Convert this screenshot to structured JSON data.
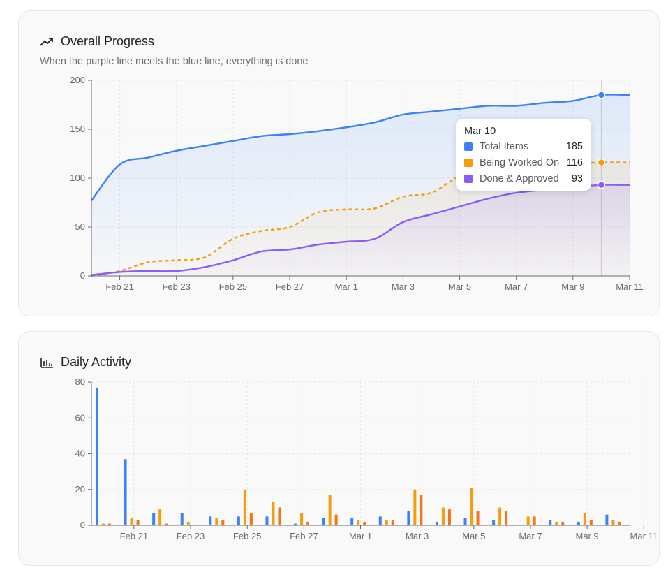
{
  "progress_card": {
    "title": "Overall Progress",
    "subtitle": "When the purple line meets the blue line, everything is done",
    "icon": "trending-up-icon"
  },
  "activity_card": {
    "title": "Daily Activity",
    "icon": "bar-chart-icon"
  },
  "tooltip": {
    "date": "Mar 10",
    "rows": [
      {
        "label": "Total Items",
        "value": "185",
        "color": "#3b82f6"
      },
      {
        "label": "Being Worked On",
        "value": "116",
        "color": "#f59e0b"
      },
      {
        "label": "Done & Approved",
        "value": "93",
        "color": "#8b5cf6"
      }
    ]
  },
  "chart_data": [
    {
      "type": "area",
      "title": "Overall Progress",
      "x": [
        "Feb 20",
        "Feb 21",
        "Feb 22",
        "Feb 23",
        "Feb 24",
        "Feb 25",
        "Feb 26",
        "Feb 27",
        "Feb 28",
        "Mar 1",
        "Mar 2",
        "Mar 3",
        "Mar 4",
        "Mar 5",
        "Mar 6",
        "Mar 7",
        "Mar 8",
        "Mar 9",
        "Mar 10",
        "Mar 11"
      ],
      "x_ticks": [
        "Feb 21",
        "Feb 23",
        "Feb 25",
        "Feb 27",
        "Mar 1",
        "Mar 3",
        "Mar 5",
        "Mar 7",
        "Mar 9",
        "Mar 11"
      ],
      "y_ticks": [
        0,
        50,
        100,
        150,
        200
      ],
      "ylim": [
        0,
        200
      ],
      "series": [
        {
          "name": "Total Items",
          "color": "#3b82f6",
          "dashed": false,
          "values": [
            77,
            114,
            121,
            128,
            133,
            138,
            143,
            145,
            148,
            152,
            157,
            165,
            168,
            171,
            174,
            174,
            177,
            179,
            185,
            185
          ]
        },
        {
          "name": "Being Worked On",
          "color": "#f59e0b",
          "dashed": true,
          "values": [
            0,
            5,
            14,
            16,
            19,
            38,
            46,
            50,
            65,
            68,
            69,
            81,
            85,
            102,
            108,
            112,
            114,
            115,
            116,
            116
          ]
        },
        {
          "name": "Done & Approved",
          "color": "#8b5cf6",
          "dashed": false,
          "values": [
            1,
            4,
            5,
            5,
            9,
            16,
            25,
            27,
            32,
            35,
            38,
            55,
            63,
            71,
            79,
            85,
            88,
            91,
            93,
            93
          ]
        }
      ],
      "highlight": "Mar 10"
    },
    {
      "type": "bar",
      "title": "Daily Activity",
      "x": [
        "Feb 20",
        "Feb 21",
        "Feb 22",
        "Feb 23",
        "Feb 24",
        "Feb 25",
        "Feb 26",
        "Feb 27",
        "Feb 28",
        "Mar 1",
        "Mar 2",
        "Mar 3",
        "Mar 4",
        "Mar 5",
        "Mar 6",
        "Mar 7",
        "Mar 8",
        "Mar 9",
        "Mar 10"
      ],
      "x_ticks": [
        "Feb 21",
        "Feb 23",
        "Feb 25",
        "Feb 27",
        "Mar 1",
        "Mar 3",
        "Mar 5",
        "Mar 7",
        "Mar 9",
        "Mar 11"
      ],
      "y_ticks": [
        0,
        20,
        40,
        60,
        80
      ],
      "ylim": [
        0,
        80
      ],
      "series": [
        {
          "color": "#3b82f6",
          "values": [
            77,
            37,
            7,
            7,
            5,
            5,
            5,
            1,
            4,
            4,
            5,
            8,
            2,
            4,
            3,
            0,
            3,
            2,
            6
          ]
        },
        {
          "color": "#f59e0b",
          "values": [
            1,
            4,
            9,
            2,
            4,
            20,
            13,
            7,
            17,
            3,
            3,
            20,
            10,
            21,
            10,
            5,
            2,
            7,
            3
          ]
        },
        {
          "color": "#f97316",
          "values": [
            1,
            3,
            1,
            0,
            3,
            7,
            10,
            2,
            6,
            2,
            3,
            17,
            9,
            8,
            8,
            5,
            2,
            3,
            2
          ]
        }
      ]
    }
  ]
}
